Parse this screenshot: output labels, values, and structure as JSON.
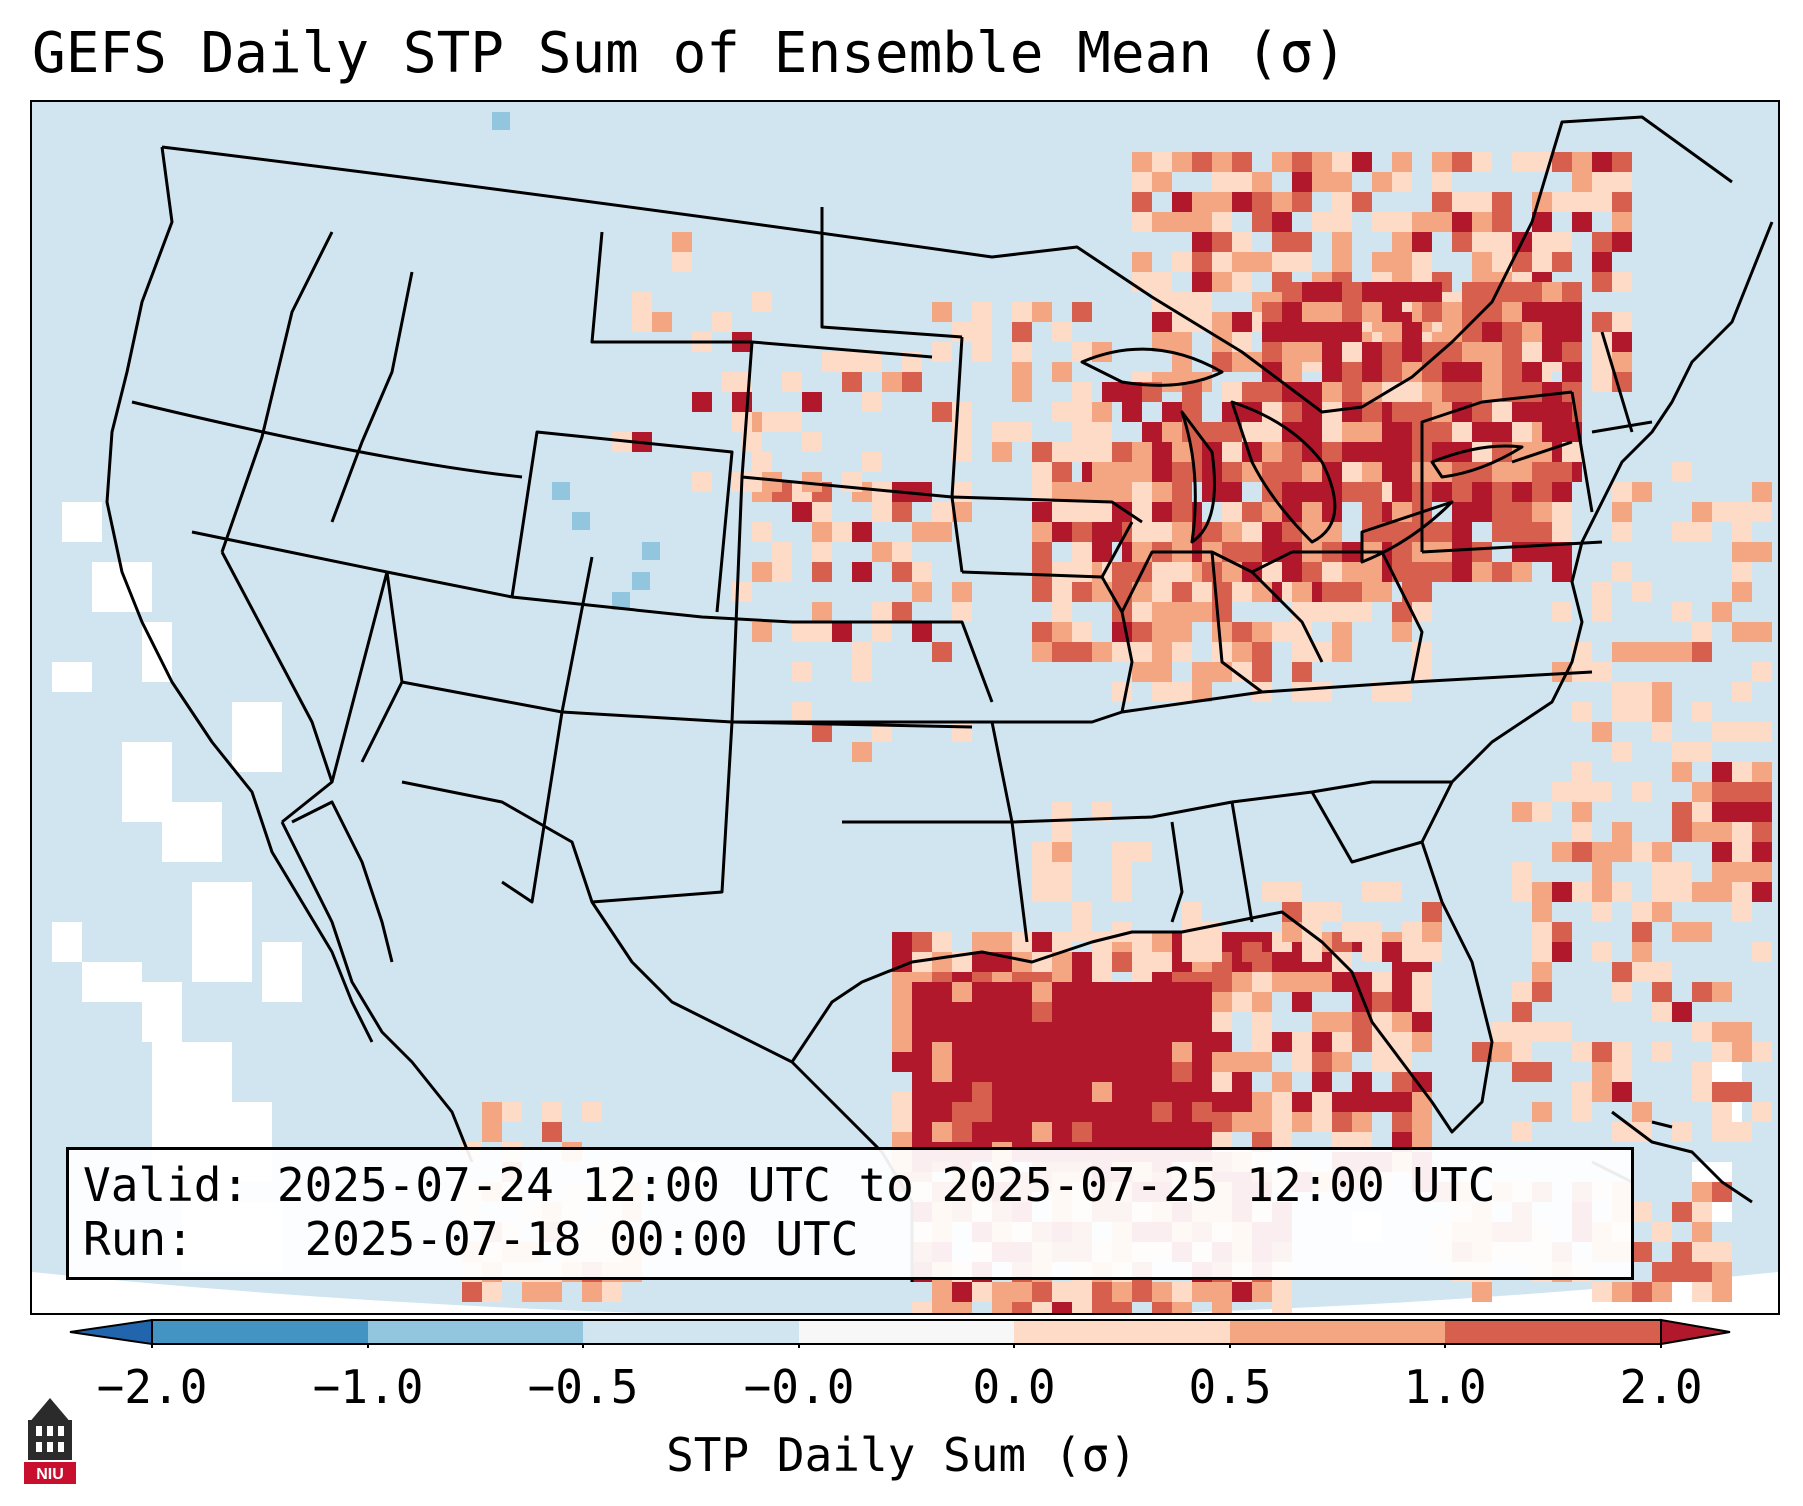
{
  "title": "GEFS Daily STP Sum of Ensemble Mean (σ)",
  "info": {
    "valid_label": "Valid:",
    "valid_value": "2025-07-24 12:00 UTC to 2025-07-25 12:00 UTC",
    "run_label": "Run:",
    "run_value": "2025-07-18 00:00 UTC"
  },
  "colorbar": {
    "label": "STP Daily Sum (σ)",
    "ticks": [
      "−2.0",
      "−1.0",
      "−0.5",
      "−0.0",
      "0.0",
      "0.5",
      "1.0",
      "2.0"
    ],
    "bins": [
      {
        "range": "< -2.0",
        "color": "#2166ac"
      },
      {
        "range": "-2.0 to -1.0",
        "color": "#4393c3"
      },
      {
        "range": "-1.0 to -0.5",
        "color": "#92c5de"
      },
      {
        "range": "-0.5 to -0.0",
        "color": "#d1e5f0"
      },
      {
        "range": "-0.0 to 0.0",
        "color": "#f7f7f7"
      },
      {
        "range": "0.0 to 0.5",
        "color": "#fddbc7"
      },
      {
        "range": "0.5 to 1.0",
        "color": "#f4a582"
      },
      {
        "range": "1.0 to 2.0",
        "color": "#d6604d"
      },
      {
        "range": "> 2.0",
        "color": "#b2182b"
      }
    ]
  },
  "map": {
    "background_color": "#d1e5f0",
    "outside_color": "#ffffff",
    "boundary_color": "#000000"
  },
  "logo": {
    "text": "NIU",
    "color": "#c8102e"
  }
}
